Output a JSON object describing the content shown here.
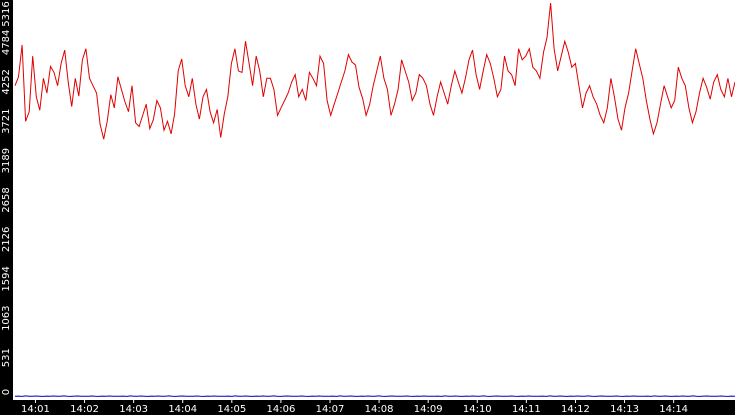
{
  "chart_data": {
    "type": "line",
    "title": "",
    "xlabel": "",
    "ylabel": "",
    "ylim": [
      0,
      5316
    ],
    "y_ticks": [
      "0",
      "531",
      "1063",
      "1594",
      "2126",
      "2658",
      "3189",
      "3721",
      "4252",
      "4784",
      "5316"
    ],
    "x_ticks": [
      "14:01",
      "14:02",
      "14:03",
      "14:04",
      "14:05",
      "14:06",
      "14:07",
      "14:08",
      "14:09",
      "14:10",
      "14:11",
      "14:12",
      "14:13",
      "14:14"
    ],
    "x_start": "14:00:35",
    "x_end": "14:15:15",
    "series": [
      {
        "color": "#e00000",
        "values": [
          4200,
          4320,
          4750,
          3720,
          3850,
          4600,
          4050,
          3870,
          4300,
          4100,
          4460,
          4380,
          4200,
          4500,
          4680,
          4250,
          3920,
          4300,
          4060,
          4550,
          4700,
          4300,
          4200,
          4100,
          3680,
          3480,
          3720,
          4080,
          3900,
          4320,
          4150,
          3980,
          3850,
          4200,
          3700,
          3650,
          3800,
          3950,
          3620,
          3740,
          4000,
          3900,
          3600,
          3720,
          3550,
          3820,
          4400,
          4560,
          4200,
          4050,
          4300,
          3950,
          3750,
          4050,
          4150,
          3850,
          3700,
          3880,
          3500,
          3820,
          4050,
          4500,
          4700,
          4400,
          4380,
          4800,
          4500,
          4200,
          4600,
          4400,
          4050,
          4300,
          4300,
          4150,
          3800,
          3900,
          4000,
          4100,
          4250,
          4350,
          4050,
          4150,
          4000,
          4380,
          4300,
          4200,
          4600,
          4500,
          4000,
          3800,
          3950,
          4100,
          4250,
          4400,
          4620,
          4520,
          4480,
          4180,
          4030,
          3800,
          3950,
          4200,
          4400,
          4600,
          4300,
          4150,
          3800,
          3950,
          4150,
          4550,
          4400,
          4250,
          4000,
          4100,
          4350,
          4300,
          4200,
          3950,
          3800,
          4050,
          4250,
          4100,
          3950,
          4200,
          4400,
          4250,
          4100,
          4300,
          4550,
          4680,
          4350,
          4150,
          4400,
          4620,
          4500,
          4300,
          4050,
          4150,
          4600,
          4400,
          4350,
          4200,
          4700,
          4550,
          4600,
          4700,
          4450,
          4400,
          4300,
          4650,
          4850,
          5316,
          4700,
          4400,
          4600,
          4800,
          4650,
          4450,
          4500,
          4200,
          3900,
          4100,
          4200,
          4050,
          3950,
          3800,
          3700,
          3900,
          4300,
          4050,
          3750,
          3600,
          3900,
          4100,
          4400,
          4700,
          4500,
          4300,
          4000,
          3750,
          3550,
          3700,
          3950,
          4200,
          4050,
          3900,
          4000,
          4450,
          4300,
          4200,
          3900,
          3700,
          3850,
          4100,
          4300,
          4180,
          4020,
          4250,
          4350,
          4150,
          4050,
          4300,
          4050,
          4250
        ]
      },
      {
        "color": "#0000c0",
        "values": [
          10,
          12,
          8,
          15,
          10,
          9,
          14,
          11,
          8,
          12,
          10,
          13,
          9,
          11,
          15,
          10,
          8,
          12,
          14,
          10,
          9,
          11,
          13,
          10,
          8,
          12,
          10,
          14,
          11,
          9,
          10,
          12,
          8,
          15,
          10,
          9,
          14,
          11,
          8,
          12,
          10,
          13,
          9,
          11,
          15,
          10,
          8,
          12,
          14,
          10,
          9,
          11,
          13,
          10,
          8,
          12,
          10,
          14,
          11,
          9,
          10,
          12,
          8,
          15,
          10,
          9,
          14,
          11,
          8,
          12,
          10,
          13,
          9,
          11,
          15,
          10,
          8,
          12,
          14,
          10,
          9,
          11,
          13,
          10,
          8,
          12,
          10,
          14,
          11,
          9,
          10,
          12,
          8,
          15,
          10,
          9,
          14,
          11,
          8,
          12,
          10,
          13,
          9,
          11,
          15,
          10,
          8,
          12,
          14,
          10,
          9,
          11,
          13,
          10,
          8,
          12,
          10,
          14,
          11,
          9,
          10,
          12,
          8,
          15,
          10,
          9,
          14,
          11,
          8,
          12,
          10,
          13,
          9,
          11,
          15,
          10,
          8,
          12,
          14,
          10,
          9,
          11,
          13,
          10,
          8,
          12,
          10,
          14,
          11,
          9,
          10,
          12,
          8,
          15,
          10,
          9,
          14,
          11,
          8,
          12,
          10,
          13,
          9,
          11,
          15,
          10,
          8,
          12,
          14,
          10,
          9,
          11,
          13,
          10,
          8,
          12,
          10,
          14,
          11,
          9,
          10,
          12,
          8,
          15,
          10,
          9,
          14,
          11,
          8,
          12,
          10,
          13,
          9,
          11,
          15,
          10,
          8,
          12,
          14,
          10,
          9,
          11,
          13,
          10,
          8,
          12,
          10
        ]
      }
    ],
    "grid": false,
    "legend": "none",
    "background_color": "#ffffff",
    "axis_color": "#000000",
    "tick_label_color": "#ffffff"
  }
}
